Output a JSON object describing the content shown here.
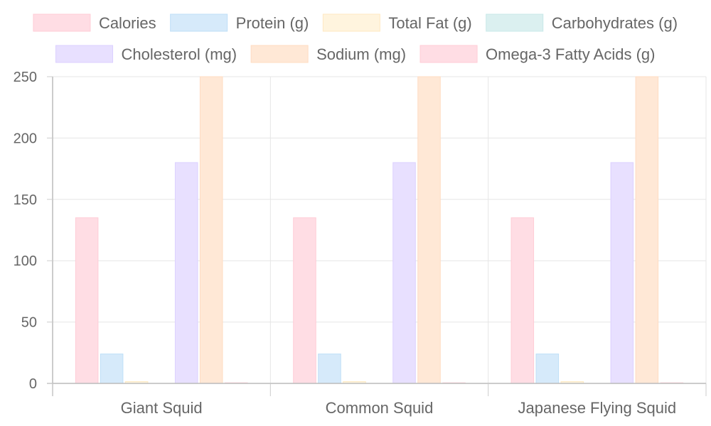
{
  "chart_data": {
    "type": "bar",
    "title": "",
    "xlabel": "",
    "ylabel": "",
    "categories": [
      "Giant Squid",
      "Common Squid",
      "Japanese Flying Squid"
    ],
    "ylim": [
      0,
      250
    ],
    "yticks": [
      0,
      50,
      100,
      150,
      200,
      250
    ],
    "grid": true,
    "legend_position": "top",
    "series": [
      {
        "name": "Calories",
        "values": [
          135,
          135,
          135
        ],
        "color": "#ffdde4",
        "stroke": "#ffccd6"
      },
      {
        "name": "Protein (g)",
        "values": [
          24,
          24,
          24
        ],
        "color": "#d6eafa",
        "stroke": "#bfdff7"
      },
      {
        "name": "Total Fat (g)",
        "values": [
          1.5,
          1.5,
          1.5
        ],
        "color": "#fff4de",
        "stroke": "#ffe9c2"
      },
      {
        "name": "Carbohydrates (g)",
        "values": [
          0,
          0,
          0
        ],
        "color": "#dbf0f0",
        "stroke": "#c8e8e8"
      },
      {
        "name": "Cholesterol (mg)",
        "values": [
          180,
          180,
          180
        ],
        "color": "#e8e0ff",
        "stroke": "#dcd0ff"
      },
      {
        "name": "Sodium (mg)",
        "values": [
          250,
          250,
          250
        ],
        "color": "#ffe8d6",
        "stroke": "#ffdcc2"
      },
      {
        "name": "Omega-3 Fatty Acids (g)",
        "values": [
          0.5,
          0.5,
          0.5
        ],
        "color": "#ffdde4",
        "stroke": "#ffccd6"
      }
    ]
  }
}
